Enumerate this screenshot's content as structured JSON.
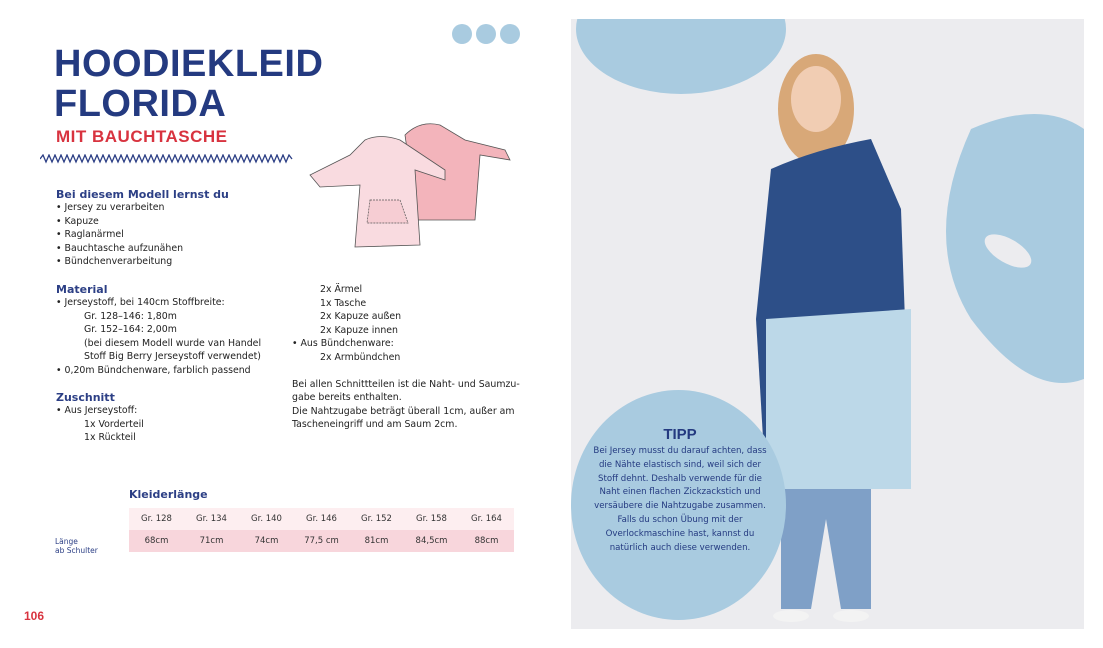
{
  "header": {
    "title_line1": "HOODIEKLEID",
    "title_line2": "FLORIDA",
    "subtitle": "MIT BAUCHTASCHE"
  },
  "learn": {
    "heading": "Bei diesem Modell lernst du",
    "items": [
      "Jersey zu verarbeiten",
      "Kapuze",
      "Raglanärmel",
      "Bauchtasche aufzunähen",
      "Bündchenverarbeitung"
    ]
  },
  "material": {
    "heading": "Material",
    "item1": "Jerseystoff, bei 140cm Stoffbreite:",
    "sub1": "Gr. 128–146: 1,80m",
    "sub2": "Gr. 152–164: 2,00m",
    "sub3": "(bei diesem Modell wurde van Handel",
    "sub4": "Stoff Big Berry Jerseystoff verwendet)",
    "item2": "0,20m Bündchenware, farblich passend"
  },
  "zuschnitt": {
    "heading": "Zuschnitt",
    "item1": "Aus Jerseystoff:",
    "parts1": [
      "1x Vorderteil",
      "1x Rückteil",
      "2x Ärmel",
      "1x Tasche",
      "2x Kapuze außen",
      "2x Kapuze innen"
    ],
    "item2": "Aus Bündchenware:",
    "parts2": [
      "2x Armbündchen"
    ]
  },
  "note": {
    "line1": "Bei allen Schnittteilen ist die Naht- und Saumzu-",
    "line2": "gabe bereits enthalten.",
    "line3": "Die Nahtzugabe beträgt überall 1cm, außer am",
    "line4": "Tascheneingriff und am Saum 2cm."
  },
  "size_table": {
    "heading": "Kleiderlänge",
    "row_label_1": "Länge",
    "row_label_2": "ab Schulter",
    "sizes": [
      "Gr. 128",
      "Gr. 134",
      "Gr. 140",
      "Gr. 146",
      "Gr. 152",
      "Gr. 158",
      "Gr. 164"
    ],
    "lengths": [
      "68cm",
      "71cm",
      "74cm",
      "77,5 cm",
      "81cm",
      "84,5cm",
      "88cm"
    ]
  },
  "tip": {
    "heading": "TIPP",
    "text": "Bei Jersey musst du darauf achten, dass die Nähte elastisch sind, weil sich der Stoff dehnt. Deshalb verwende für die Naht einen flachen Zickzackstich und versäubere die Nahtzugabe zusammen. Falls du schon Übung mit der Overlockmaschine hast, kannst du natürlich auch diese verwenden."
  },
  "page_number": "106",
  "colors": {
    "title": "#243a80",
    "accent": "#d8333f",
    "blob": "#a9cbe0",
    "table_header": "#fdeef0",
    "table_row": "#f8d6dc"
  }
}
